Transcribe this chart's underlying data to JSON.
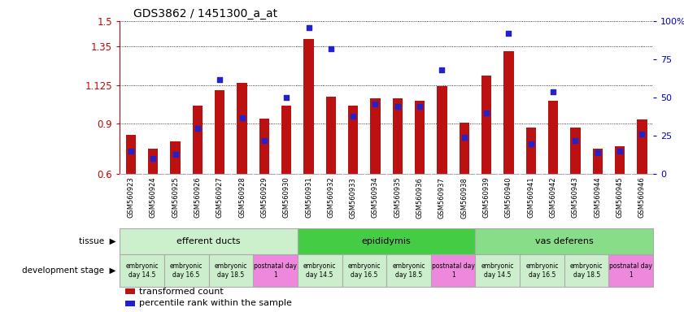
{
  "title": "GDS3862 / 1451300_a_at",
  "samples": [
    "GSM560923",
    "GSM560924",
    "GSM560925",
    "GSM560926",
    "GSM560927",
    "GSM560928",
    "GSM560929",
    "GSM560930",
    "GSM560931",
    "GSM560932",
    "GSM560933",
    "GSM560934",
    "GSM560935",
    "GSM560936",
    "GSM560937",
    "GSM560938",
    "GSM560939",
    "GSM560940",
    "GSM560941",
    "GSM560942",
    "GSM560943",
    "GSM560944",
    "GSM560945",
    "GSM560946"
  ],
  "transformed_count": [
    0.83,
    0.75,
    0.795,
    1.005,
    1.095,
    1.135,
    0.925,
    1.005,
    1.395,
    1.055,
    1.005,
    1.045,
    1.045,
    1.03,
    1.12,
    0.905,
    1.18,
    1.325,
    0.875,
    1.03,
    0.875,
    0.75,
    0.765,
    0.92
  ],
  "percentile_rank": [
    15,
    10,
    13,
    30,
    62,
    37,
    22,
    50,
    96,
    82,
    38,
    46,
    44,
    44,
    68,
    24,
    40,
    92,
    20,
    54,
    22,
    14,
    15,
    26
  ],
  "ylim_left": [
    0.6,
    1.5
  ],
  "ylim_right": [
    0,
    100
  ],
  "yticks_left": [
    0.6,
    0.9,
    1.125,
    1.35,
    1.5
  ],
  "ytick_labels_left": [
    "0.6",
    "0.9",
    "1.125",
    "1.35",
    "1.5"
  ],
  "yticks_right": [
    0,
    25,
    50,
    75,
    100
  ],
  "ytick_labels_right": [
    "0",
    "25",
    "50",
    "75",
    "100%"
  ],
  "bar_color": "#bb1111",
  "dot_color": "#2222cc",
  "grid_color": "#000000",
  "bg_color": "#ffffff",
  "tissue_groups": [
    {
      "label": "efferent ducts",
      "start": 0,
      "end": 7,
      "color": "#ccf0cc"
    },
    {
      "label": "epididymis",
      "start": 8,
      "end": 15,
      "color": "#44cc44"
    },
    {
      "label": "vas deferens",
      "start": 16,
      "end": 23,
      "color": "#88dd88"
    }
  ],
  "dev_stage_groups": [
    {
      "label": "embryonic\nday 14.5",
      "start": 0,
      "end": 1,
      "color": "#cceecc"
    },
    {
      "label": "embryonic\nday 16.5",
      "start": 2,
      "end": 3,
      "color": "#cceecc"
    },
    {
      "label": "embryonic\nday 18.5",
      "start": 4,
      "end": 5,
      "color": "#cceecc"
    },
    {
      "label": "postnatal day\n1",
      "start": 6,
      "end": 7,
      "color": "#ee88dd"
    },
    {
      "label": "embryonic\nday 14.5",
      "start": 8,
      "end": 9,
      "color": "#cceecc"
    },
    {
      "label": "embryonic\nday 16.5",
      "start": 10,
      "end": 11,
      "color": "#cceecc"
    },
    {
      "label": "embryonic\nday 18.5",
      "start": 12,
      "end": 13,
      "color": "#cceecc"
    },
    {
      "label": "postnatal day\n1",
      "start": 14,
      "end": 15,
      "color": "#ee88dd"
    },
    {
      "label": "embryonic\nday 14.5",
      "start": 16,
      "end": 17,
      "color": "#cceecc"
    },
    {
      "label": "embryonic\nday 16.5",
      "start": 18,
      "end": 19,
      "color": "#cceecc"
    },
    {
      "label": "embryonic\nday 18.5",
      "start": 20,
      "end": 21,
      "color": "#cceecc"
    },
    {
      "label": "postnatal day\n1",
      "start": 22,
      "end": 23,
      "color": "#ee88dd"
    }
  ],
  "legend_items": [
    {
      "label": "transformed count",
      "color": "#bb1111"
    },
    {
      "label": "percentile rank within the sample",
      "color": "#2222cc"
    }
  ],
  "left_axis_color": "#cc0000",
  "right_axis_color": "#0000cc",
  "tick_label_area_color": "#dddddd"
}
